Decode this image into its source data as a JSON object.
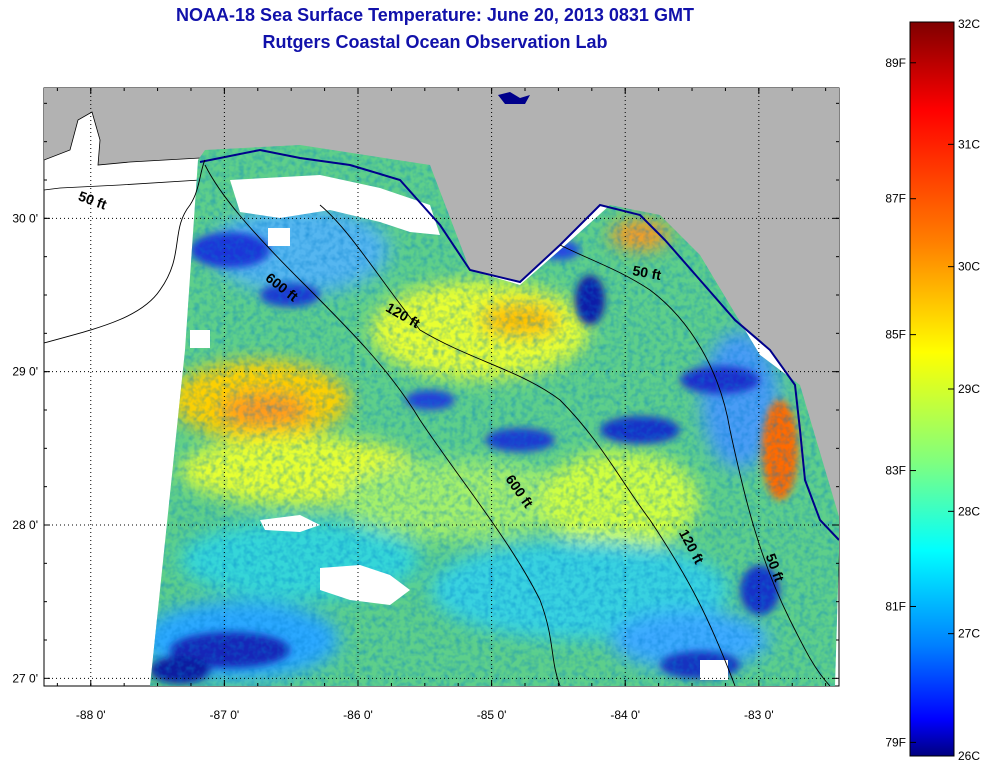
{
  "title": {
    "line1": "NOAA-18 Sea Surface Temperature:  June 20, 2013 0831 GMT",
    "line2": "Rutgers Coastal Ocean Observation Lab"
  },
  "map": {
    "lat_ticks": [
      {
        "value": 30,
        "label": "30 0'"
      },
      {
        "value": 29,
        "label": "29 0'"
      },
      {
        "value": 28,
        "label": "28 0'"
      },
      {
        "value": 27,
        "label": "27 0'"
      }
    ],
    "lon_ticks": [
      {
        "value": -88,
        "label": "-88 0'"
      },
      {
        "value": -87,
        "label": "-87 0'"
      },
      {
        "value": -86,
        "label": "-86 0'"
      },
      {
        "value": -85,
        "label": "-85 0'"
      },
      {
        "value": -84,
        "label": "-84 0'"
      },
      {
        "value": -83,
        "label": "-83 0'"
      }
    ],
    "lon_range": [
      -88.35,
      -82.4
    ],
    "lat_range": [
      26.95,
      30.85
    ],
    "contour_labels": [
      {
        "text": "50 ft",
        "lon": -88.1,
        "lat": 30.12
      },
      {
        "text": "600 ft",
        "lon": -86.7,
        "lat": 29.6
      },
      {
        "text": "120 ft",
        "lon": -85.8,
        "lat": 29.4
      },
      {
        "text": "50 ft",
        "lon": -83.95,
        "lat": 29.63
      },
      {
        "text": "600 ft",
        "lon": -84.9,
        "lat": 28.3
      },
      {
        "text": "120 ft",
        "lon": -83.6,
        "lat": 27.95
      },
      {
        "text": "50 ft",
        "lon": -82.95,
        "lat": 27.8
      }
    ],
    "colors": {
      "land": "#b2b2b2",
      "no_data": "#ffffff"
    }
  },
  "colorbar": {
    "min_c": 26,
    "max_c": 32,
    "celsius_labels": [
      {
        "value": 32,
        "label": "32C"
      },
      {
        "value": 31,
        "label": "31C"
      },
      {
        "value": 30,
        "label": "30C"
      },
      {
        "value": 29,
        "label": "29C"
      },
      {
        "value": 28,
        "label": "28C"
      },
      {
        "value": 27,
        "label": "27C"
      },
      {
        "value": 26,
        "label": "26C"
      }
    ],
    "fahrenheit_labels": [
      {
        "value": 89,
        "label": "89F"
      },
      {
        "value": 87,
        "label": "87F"
      },
      {
        "value": 85,
        "label": "85F"
      },
      {
        "value": 83,
        "label": "83F"
      },
      {
        "value": 81,
        "label": "81F"
      },
      {
        "value": 79,
        "label": "79F"
      }
    ]
  }
}
